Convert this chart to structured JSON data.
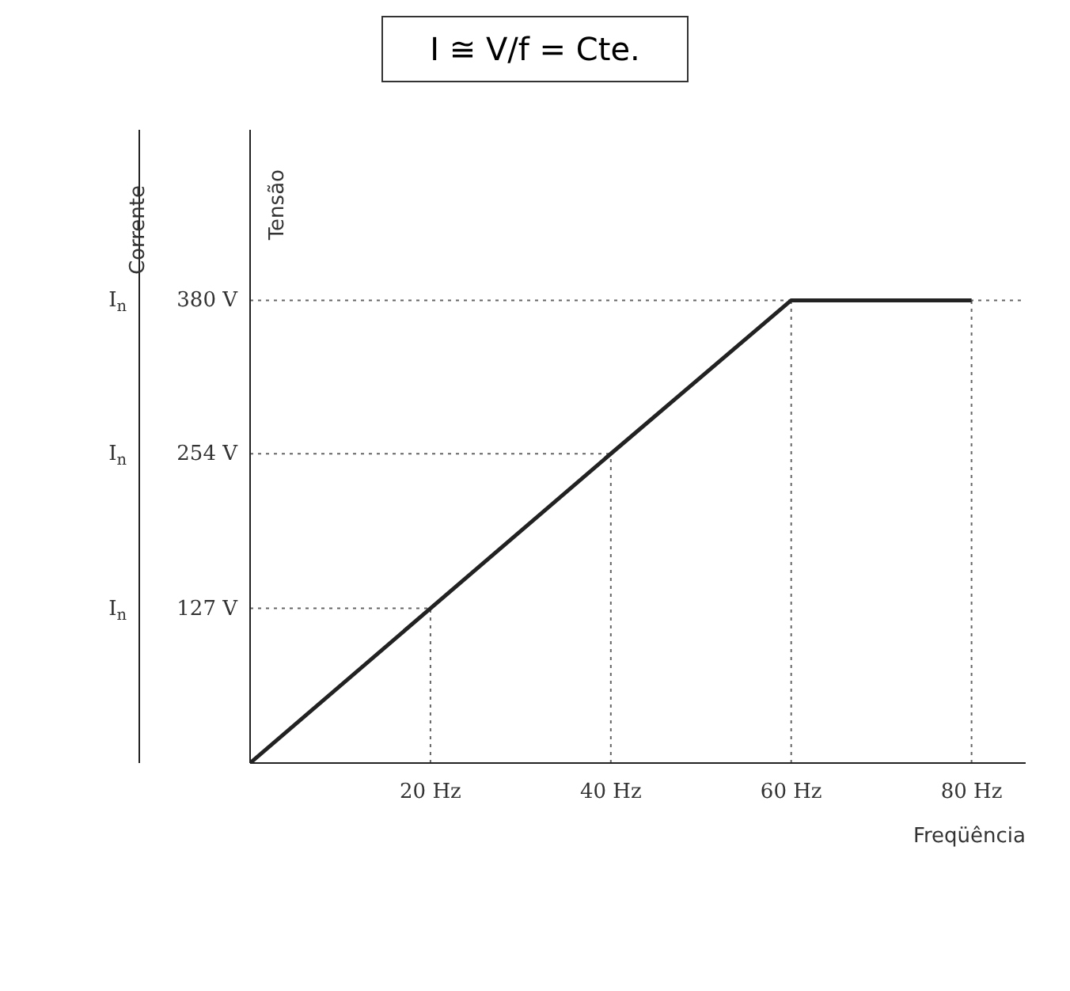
{
  "chart_data": {
    "type": "line",
    "title": "I ≅ V/f = Cte.",
    "xlabel": "Freqüência",
    "ylabel": "Tensão",
    "y2label": "Corrente",
    "x": [
      0,
      20,
      40,
      60,
      80
    ],
    "series": [
      {
        "color": "#222222",
        "values": [
          0,
          127,
          254,
          380,
          380
        ]
      }
    ],
    "xlim": [
      0,
      86
    ],
    "xticks": [
      {
        "value": 20,
        "label": "20 Hz"
      },
      {
        "value": 40,
        "label": "40 Hz"
      },
      {
        "value": 60,
        "label": "60 Hz"
      },
      {
        "value": 80,
        "label": "80 Hz"
      }
    ],
    "ylim": [
      0,
      520
    ],
    "yticks": [
      {
        "value": 127,
        "label": "127 V"
      },
      {
        "value": 254,
        "label": "254 V"
      },
      {
        "value": 380,
        "label": "380 V"
      }
    ],
    "annotations": [
      "I$_{n}$",
      "I$_{n}$",
      "I$_{n}$"
    ],
    "ref_lines": [
      {
        "axis": "y",
        "value": 127,
        "color": "#666666",
        "line_style": "dotted"
      },
      {
        "axis": "y",
        "value": 254,
        "color": "#666666",
        "line_style": "dotted"
      },
      {
        "axis": "y",
        "value": 380,
        "color": "#666666",
        "line_style": "dotted"
      },
      {
        "axis": "x",
        "value": 20,
        "color": "#666666",
        "line_style": "dotted"
      },
      {
        "axis": "x",
        "value": 40,
        "color": "#666666",
        "line_style": "dotted"
      },
      {
        "axis": "x",
        "value": 60,
        "color": "#666666",
        "line_style": "dotted"
      },
      {
        "axis": "x",
        "value": 80,
        "color": "#666666",
        "line_style": "dotted"
      }
    ],
    "marker": "none",
    "line_style": "solid"
  }
}
